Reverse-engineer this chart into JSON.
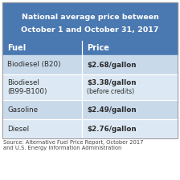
{
  "title_line1": "National average price between",
  "title_line2": "October 1 and October 31, 2017",
  "header_fuel": "Fuel",
  "header_price": "Price",
  "rows": [
    {
      "fuel": "Biodiesel (B20)",
      "price": "$2.68/gallon",
      "price2": ""
    },
    {
      "fuel": "Biodiesel\n(B99-B100)",
      "price": "$3.38/gallon",
      "price2": "(before credits)"
    },
    {
      "fuel": "Gasoline",
      "price": "$2.49/gallon",
      "price2": ""
    },
    {
      "fuel": "Diesel",
      "price": "$2.76/gallon",
      "price2": ""
    }
  ],
  "source_text": "Source: Alternative Fuel Price Report, October 2017\nand U.S. Energy Information Administration",
  "title_bg": "#4a78b0",
  "header_bg": "#4a78b0",
  "row_bg_even": "#c8d9ea",
  "row_bg_odd": "#dce9f4",
  "header_text_color": "#ffffff",
  "title_text_color": "#ffffff",
  "row_text_color": "#2a2a2a",
  "source_text_color": "#444444",
  "col_split": 0.455,
  "fig_bg": "#ffffff"
}
